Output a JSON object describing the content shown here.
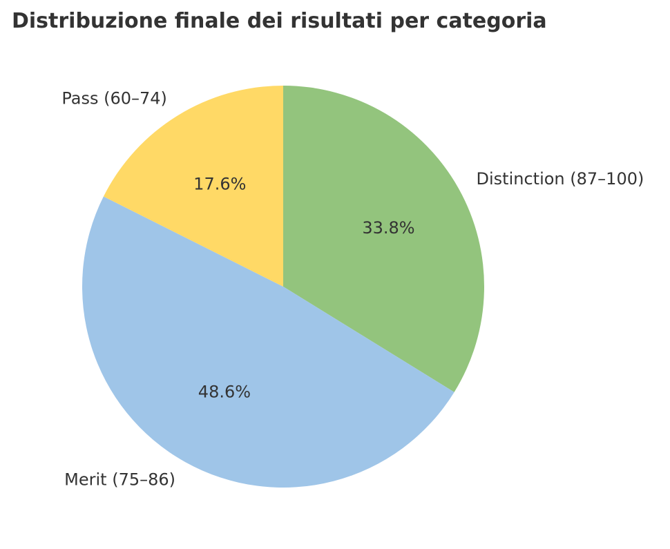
{
  "chart_data": {
    "type": "pie",
    "title": "Distribuzione finale dei risultati per categoria",
    "slices": [
      {
        "label": "Distinction (87–100)",
        "value": 33.8,
        "pct_label": "33.8%",
        "color": "#93c47d"
      },
      {
        "label": "Merit (75–86)",
        "value": 48.6,
        "pct_label": "48.6%",
        "color": "#9fc5e8"
      },
      {
        "label": "Pass (60–74)",
        "value": 17.6,
        "pct_label": "17.6%",
        "color": "#ffd966"
      }
    ],
    "start_angle": "12 o'clock",
    "direction": "clockwise"
  }
}
